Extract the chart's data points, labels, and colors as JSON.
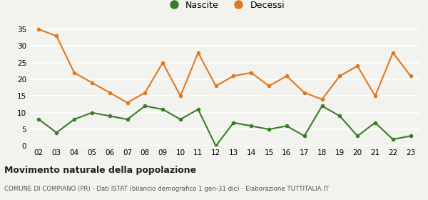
{
  "years": [
    "02",
    "03",
    "04",
    "05",
    "06",
    "07",
    "08",
    "09",
    "10",
    "11",
    "12",
    "13",
    "14",
    "15",
    "16",
    "17",
    "18",
    "19",
    "20",
    "21",
    "22",
    "23"
  ],
  "nascite": [
    8,
    4,
    8,
    10,
    9,
    8,
    12,
    11,
    8,
    11,
    0,
    7,
    6,
    5,
    6,
    3,
    12,
    9,
    3,
    7,
    2,
    3
  ],
  "decessi": [
    35,
    33,
    22,
    19,
    16,
    13,
    16,
    25,
    15,
    28,
    18,
    21,
    22,
    18,
    21,
    16,
    14,
    21,
    24,
    15,
    28,
    21
  ],
  "nascite_color": "#3a7d28",
  "decessi_color": "#e07820",
  "background_color": "#f2f2ee",
  "grid_color": "#ffffff",
  "ylim": [
    0,
    36
  ],
  "yticks": [
    0,
    5,
    10,
    15,
    20,
    25,
    30,
    35
  ],
  "title": "Movimento naturale della popolazione",
  "subtitle": "COMUNE DI COMPIANO (PR) - Dati ISTAT (bilancio demografico 1 gen-31 dic) - Elaborazione TUTTITALIA.IT",
  "legend_nascite": "Nascite",
  "legend_decessi": "Decessi",
  "marker_size": 4,
  "line_width": 1.5
}
